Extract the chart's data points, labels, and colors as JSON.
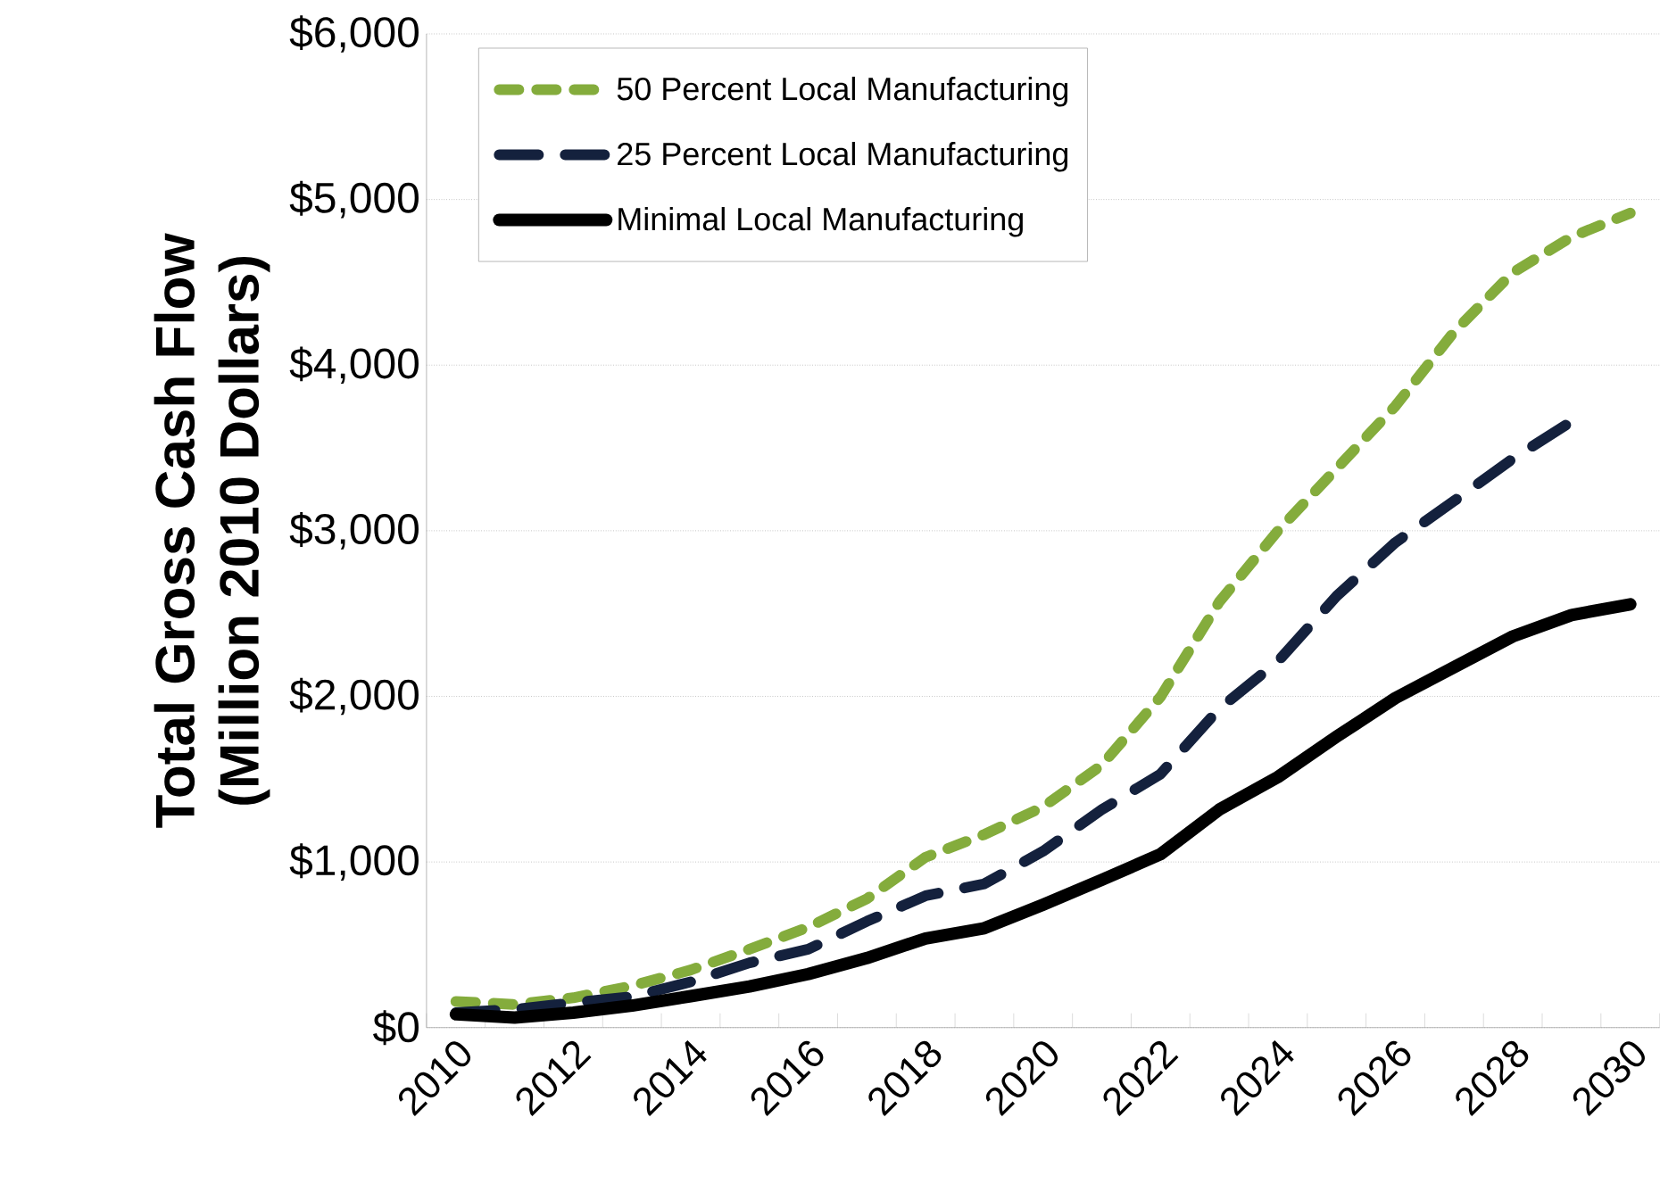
{
  "chart_data": {
    "type": "line",
    "ylabel": "Total Gross Cash Flow\n(Million 2010 Dollars)",
    "categories": [
      "2010",
      null,
      "2012",
      null,
      "2014",
      null,
      "2016",
      null,
      "2018",
      null,
      "2020",
      null,
      "2022",
      null,
      "2024",
      null,
      "2026",
      null,
      "2028",
      null,
      "2030"
    ],
    "series": [
      {
        "name": "50 Percent Local Manufacturing",
        "color": "#84ac3c",
        "line_style": "dashed",
        "values": [
          158,
          140,
          180,
          252,
          348,
          473,
          606,
          778,
          1029,
          1166,
          1333,
          1585,
          1997,
          2570,
          3000,
          3376,
          3753,
          4201,
          4559,
          4774,
          4918
        ]
      },
      {
        "name": "25 Percent Local Manufacturing",
        "color": "#14213d",
        "line_style": "dashed",
        "values": [
          90,
          110,
          150,
          187,
          276,
          391,
          473,
          642,
          796,
          868,
          1065,
          1316,
          1531,
          1925,
          2212,
          2606,
          2929,
          3180,
          3435,
          3660,
          null
        ]
      },
      {
        "name": "Minimal Local Manufacturing",
        "color": "#000000",
        "line_style": "solid",
        "values": [
          80,
          60,
          90,
          133,
          190,
          248,
          323,
          420,
          538,
          600,
          742,
          892,
          1047,
          1316,
          1513,
          1757,
          1990,
          2176,
          2362,
          2491,
          2556
        ]
      }
    ],
    "ylim": [
      0,
      6000
    ],
    "yticks": [
      {
        "value": 0,
        "label": "$0"
      },
      {
        "value": 1000,
        "label": "$1,000"
      },
      {
        "value": 2000,
        "label": "$2,000"
      },
      {
        "value": 3000,
        "label": "$3,000"
      },
      {
        "value": 4000,
        "label": "$4,000"
      },
      {
        "value": 5000,
        "label": "$5,000"
      },
      {
        "value": 6000,
        "label": "$6,000"
      }
    ],
    "grid": "y",
    "legend": "top left"
  }
}
